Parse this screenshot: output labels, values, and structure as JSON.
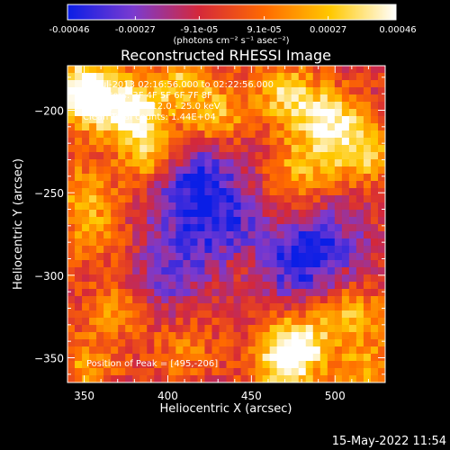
{
  "chart_data": {
    "type": "heatmap",
    "title": "Reconstructed RHESSI Image",
    "xlabel": "Heliocentric X (arcsec)",
    "ylabel": "Heliocentric Y (arcsec)",
    "xlim": [
      340,
      530
    ],
    "ylim": [
      -365,
      -173
    ],
    "xticks": [
      350,
      400,
      450,
      500
    ],
    "yticks": [
      -200,
      -250,
      -300,
      -350
    ],
    "colorbar": {
      "min": -0.00046,
      "max": 0.00046,
      "ticks": [
        -0.00046,
        -0.00027,
        -9.1e-05,
        9.1e-05,
        0.00027,
        0.00046
      ],
      "tick_labels": [
        "-0.00046",
        "-0.00027",
        "-9.1e-05",
        "9.1e-05",
        "0.00027",
        "0.00046"
      ],
      "unit": "(photons cm⁻² s⁻¹ asec⁻²)",
      "colors": [
        "#0a1ee6",
        "#7a3ad0",
        "#d4283a",
        "#ff6a00",
        "#ffc800",
        "#ffffff"
      ]
    },
    "annotations": {
      "time_range": "10-Jul-2013 02:16:56.000 to 02:22:56.000",
      "detectors": "Detectors: 3F 4F 5F 6F 7F 8F",
      "energy_range": "Energy Range: 12.0 - 25.0 keV",
      "counts": "Clean    Total counts: 1.44E+04",
      "peak": "Position of Peak = [495,-206]"
    },
    "peak": [
      495,
      -206
    ],
    "sources": [
      {
        "x": 345,
        "y": -185,
        "value": 0.0004
      },
      {
        "x": 358,
        "y": -195,
        "value": 0.00042
      },
      {
        "x": 380,
        "y": -200,
        "value": 0.0004
      },
      {
        "x": 390,
        "y": -225,
        "value": 0.00038
      },
      {
        "x": 408,
        "y": -183,
        "value": 0.0003
      },
      {
        "x": 428,
        "y": -205,
        "value": 0.00035
      },
      {
        "x": 470,
        "y": -190,
        "value": 0.00036
      },
      {
        "x": 495,
        "y": -206,
        "value": 0.00046
      },
      {
        "x": 515,
        "y": -225,
        "value": 0.00038
      },
      {
        "x": 480,
        "y": -235,
        "value": 0.00028
      },
      {
        "x": 350,
        "y": -250,
        "value": 0.00025
      },
      {
        "x": 355,
        "y": -275,
        "value": 0.0002
      },
      {
        "x": 470,
        "y": -352,
        "value": 0.00046
      },
      {
        "x": 480,
        "y": -340,
        "value": 0.00035
      },
      {
        "x": 510,
        "y": -325,
        "value": 0.0003
      },
      {
        "x": 520,
        "y": -360,
        "value": 0.00028
      },
      {
        "x": 370,
        "y": -320,
        "value": 0.00022
      },
      {
        "x": 350,
        "y": -355,
        "value": 0.00022
      },
      {
        "x": 410,
        "y": -345,
        "value": 0.00018
      },
      {
        "x": 448,
        "y": -290,
        "value": 0.00016
      },
      {
        "x": 470,
        "y": -265,
        "value": 0.00014
      }
    ],
    "troughs": [
      {
        "x": 415,
        "y": -255,
        "value": -0.0003
      },
      {
        "x": 475,
        "y": -290,
        "value": -0.00032
      },
      {
        "x": 440,
        "y": -275,
        "value": -0.00025
      },
      {
        "x": 400,
        "y": -300,
        "value": -0.00022
      },
      {
        "x": 420,
        "y": -230,
        "value": -0.00018
      },
      {
        "x": 495,
        "y": -280,
        "value": -0.0002
      }
    ]
  },
  "footer": {
    "timestamp": "15-May-2022 11:54"
  }
}
